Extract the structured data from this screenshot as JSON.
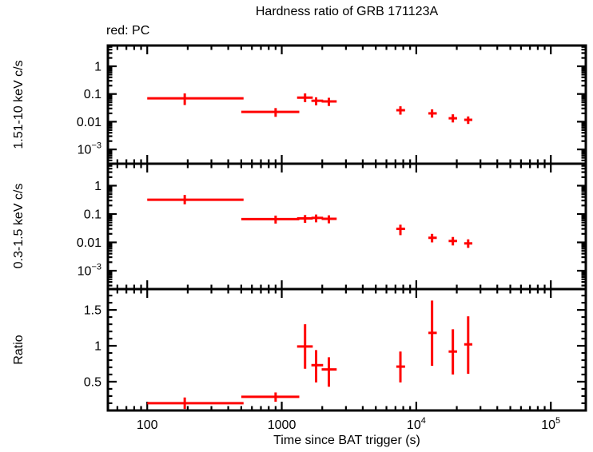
{
  "chart_data": {
    "type": "scatter",
    "title": "Hardness ratio of GRB 171123A",
    "annotation": "red: PC",
    "series_name": "PC",
    "series_color": "#ff0000",
    "axis_color": "#000000",
    "background_color": "#ffffff",
    "xlabel": "Time since BAT trigger (s)",
    "xscale": "log",
    "xlim": [
      51,
      182000
    ],
    "xticks": [
      {
        "value": 100,
        "label": "100"
      },
      {
        "value": 1000,
        "label": "1000"
      },
      {
        "value": 10000,
        "label": "10^4"
      },
      {
        "value": 100000,
        "label": "10^5"
      }
    ],
    "panels": [
      {
        "name": "hard-band",
        "ylabel": "1.51-10 keV c/s",
        "yscale": "log",
        "ylim": [
          0.000305,
          5.61
        ],
        "yticks": [
          {
            "value": 1,
            "label": "1"
          },
          {
            "value": 0.1,
            "label": "0.1"
          },
          {
            "value": 0.01,
            "label": "0.01"
          },
          {
            "value": 0.001,
            "label": "10^-3"
          }
        ],
        "points": [
          {
            "t": 190,
            "t_lo": 100,
            "t_hi": 520,
            "y": 0.07,
            "y_lo": 0.04,
            "y_hi": 0.105
          },
          {
            "t": 900,
            "t_lo": 500,
            "t_hi": 1350,
            "y": 0.0225,
            "y_lo": 0.015,
            "y_hi": 0.031
          },
          {
            "t": 1490,
            "t_lo": 1300,
            "t_hi": 1700,
            "y": 0.074,
            "y_lo": 0.051,
            "y_hi": 0.105
          },
          {
            "t": 1800,
            "t_lo": 1660,
            "t_hi": 2030,
            "y": 0.057,
            "y_lo": 0.039,
            "y_hi": 0.076
          },
          {
            "t": 2240,
            "t_lo": 1980,
            "t_hi": 2560,
            "y": 0.054,
            "y_lo": 0.037,
            "y_hi": 0.073
          },
          {
            "t": 7620,
            "t_lo": 7100,
            "t_hi": 8250,
            "y": 0.026,
            "y_lo": 0.018,
            "y_hi": 0.036
          },
          {
            "t": 13100,
            "t_lo": 12300,
            "t_hi": 14200,
            "y": 0.02,
            "y_lo": 0.014,
            "y_hi": 0.028
          },
          {
            "t": 18700,
            "t_lo": 17400,
            "t_hi": 20100,
            "y": 0.0133,
            "y_lo": 0.0094,
            "y_hi": 0.0185
          },
          {
            "t": 24300,
            "t_lo": 22700,
            "t_hi": 26100,
            "y": 0.0117,
            "y_lo": 0.0083,
            "y_hi": 0.0155
          }
        ]
      },
      {
        "name": "soft-band",
        "ylabel": "0.3-1.5 keV c/s",
        "yscale": "log",
        "ylim": [
          0.000225,
          5.95
        ],
        "yticks": [
          {
            "value": 1,
            "label": "1"
          },
          {
            "value": 0.1,
            "label": "0.1"
          },
          {
            "value": 0.01,
            "label": "0.01"
          },
          {
            "value": 0.001,
            "label": "10^-3"
          }
        ],
        "points": [
          {
            "t": 190,
            "t_lo": 100,
            "t_hi": 520,
            "y": 0.32,
            "y_lo": 0.22,
            "y_hi": 0.47
          },
          {
            "t": 900,
            "t_lo": 500,
            "t_hi": 1350,
            "y": 0.066,
            "y_lo": 0.046,
            "y_hi": 0.088
          },
          {
            "t": 1490,
            "t_lo": 1300,
            "t_hi": 1700,
            "y": 0.07,
            "y_lo": 0.049,
            "y_hi": 0.092
          },
          {
            "t": 1800,
            "t_lo": 1660,
            "t_hi": 2030,
            "y": 0.073,
            "y_lo": 0.051,
            "y_hi": 0.096
          },
          {
            "t": 2240,
            "t_lo": 1980,
            "t_hi": 2560,
            "y": 0.068,
            "y_lo": 0.047,
            "y_hi": 0.09
          },
          {
            "t": 7620,
            "t_lo": 7100,
            "t_hi": 8250,
            "y": 0.03,
            "y_lo": 0.018,
            "y_hi": 0.042
          },
          {
            "t": 13100,
            "t_lo": 12300,
            "t_hi": 14200,
            "y": 0.0145,
            "y_lo": 0.01,
            "y_hi": 0.02
          },
          {
            "t": 18700,
            "t_lo": 17400,
            "t_hi": 20100,
            "y": 0.0112,
            "y_lo": 0.0078,
            "y_hi": 0.0155
          },
          {
            "t": 24300,
            "t_lo": 22700,
            "t_hi": 26100,
            "y": 0.0092,
            "y_lo": 0.0064,
            "y_hi": 0.0128
          }
        ]
      },
      {
        "name": "ratio",
        "ylabel": "Ratio",
        "yscale": "linear",
        "ylim": [
          0.099,
          1.79
        ],
        "yticks": [
          {
            "value": 1.5,
            "label": "1.5"
          },
          {
            "value": 1,
            "label": "1"
          },
          {
            "value": 0.5,
            "label": "0.5"
          }
        ],
        "points": [
          {
            "t": 190,
            "t_lo": 100,
            "t_hi": 520,
            "y": 0.2,
            "y_lo": 0.12,
            "y_hi": 0.28
          },
          {
            "t": 900,
            "t_lo": 500,
            "t_hi": 1350,
            "y": 0.29,
            "y_lo": 0.22,
            "y_hi": 0.35
          },
          {
            "t": 1490,
            "t_lo": 1300,
            "t_hi": 1700,
            "y": 0.99,
            "y_lo": 0.68,
            "y_hi": 1.3
          },
          {
            "t": 1800,
            "t_lo": 1660,
            "t_hi": 2030,
            "y": 0.73,
            "y_lo": 0.49,
            "y_hi": 0.94
          },
          {
            "t": 2240,
            "t_lo": 1980,
            "t_hi": 2560,
            "y": 0.67,
            "y_lo": 0.43,
            "y_hi": 0.84
          },
          {
            "t": 7620,
            "t_lo": 7100,
            "t_hi": 8250,
            "y": 0.71,
            "y_lo": 0.49,
            "y_hi": 0.92
          },
          {
            "t": 13100,
            "t_lo": 12300,
            "t_hi": 14200,
            "y": 1.18,
            "y_lo": 0.72,
            "y_hi": 1.63
          },
          {
            "t": 18700,
            "t_lo": 17400,
            "t_hi": 20100,
            "y": 0.92,
            "y_lo": 0.6,
            "y_hi": 1.23
          },
          {
            "t": 24300,
            "t_lo": 22700,
            "t_hi": 26100,
            "y": 1.02,
            "y_lo": 0.61,
            "y_hi": 1.41
          }
        ]
      }
    ]
  }
}
